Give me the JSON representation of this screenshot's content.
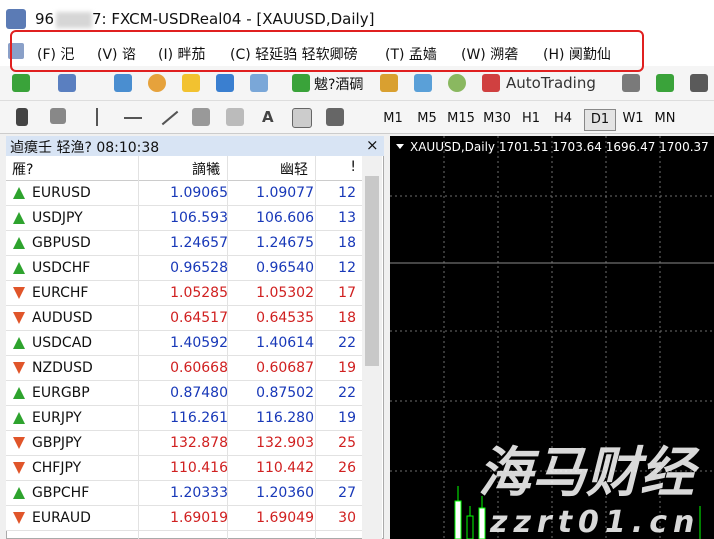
{
  "window": {
    "title_start": "96",
    "title_end": "7: FXCM-USDReal04 - [XAUUSD,Daily]"
  },
  "menu": [
    "(F) 汜",
    "(V) 谘",
    "(I) 畔茄",
    "(C) 轻延驺 轻软卿磅",
    "(T) 孟嫱",
    "(W) 溯砻",
    "(H) 阒勤仙"
  ],
  "toolbar": {
    "new_order": "魃?酒碉",
    "autotrading": "AutoTrading",
    "text_tool": "A",
    "timeframes": [
      "M1",
      "M5",
      "M15",
      "M30",
      "H1",
      "H4",
      "D1",
      "W1",
      "MN"
    ],
    "active_timeframe": "D1"
  },
  "market_watch": {
    "title": "逌瘼壬 轻渔? 08:10:38",
    "close": "×",
    "columns": [
      "雁?",
      "謫犧",
      "幽轻",
      "!"
    ],
    "rows": [
      {
        "symbol": "EURUSD",
        "bid": "1.09065",
        "ask": "1.09077",
        "spread": "12",
        "trend": "up"
      },
      {
        "symbol": "USDJPY",
        "bid": "106.593",
        "ask": "106.606",
        "spread": "13",
        "trend": "up"
      },
      {
        "symbol": "GBPUSD",
        "bid": "1.24657",
        "ask": "1.24675",
        "spread": "18",
        "trend": "up"
      },
      {
        "symbol": "USDCHF",
        "bid": "0.96528",
        "ask": "0.96540",
        "spread": "12",
        "trend": "up"
      },
      {
        "symbol": "EURCHF",
        "bid": "1.05285",
        "ask": "1.05302",
        "spread": "17",
        "trend": "down"
      },
      {
        "symbol": "AUDUSD",
        "bid": "0.64517",
        "ask": "0.64535",
        "spread": "18",
        "trend": "down"
      },
      {
        "symbol": "USDCAD",
        "bid": "1.40592",
        "ask": "1.40614",
        "spread": "22",
        "trend": "up"
      },
      {
        "symbol": "NZDUSD",
        "bid": "0.60668",
        "ask": "0.60687",
        "spread": "19",
        "trend": "down"
      },
      {
        "symbol": "EURGBP",
        "bid": "0.87480",
        "ask": "0.87502",
        "spread": "22",
        "trend": "up"
      },
      {
        "symbol": "EURJPY",
        "bid": "116.261",
        "ask": "116.280",
        "spread": "19",
        "trend": "up"
      },
      {
        "symbol": "GBPJPY",
        "bid": "132.878",
        "ask": "132.903",
        "spread": "25",
        "trend": "down"
      },
      {
        "symbol": "CHFJPY",
        "bid": "110.416",
        "ask": "110.442",
        "spread": "26",
        "trend": "down"
      },
      {
        "symbol": "GBPCHF",
        "bid": "1.20333",
        "ask": "1.20360",
        "spread": "27",
        "trend": "up"
      },
      {
        "symbol": "EURAUD",
        "bid": "1.69019",
        "ask": "1.69049",
        "spread": "30",
        "trend": "down"
      }
    ]
  },
  "chart": {
    "header": "XAUUSD,Daily  1701.51 1703.64 1696.47 1700.37"
  },
  "watermark": {
    "brand": "海马财经",
    "site": "zzrt01.cn"
  }
}
